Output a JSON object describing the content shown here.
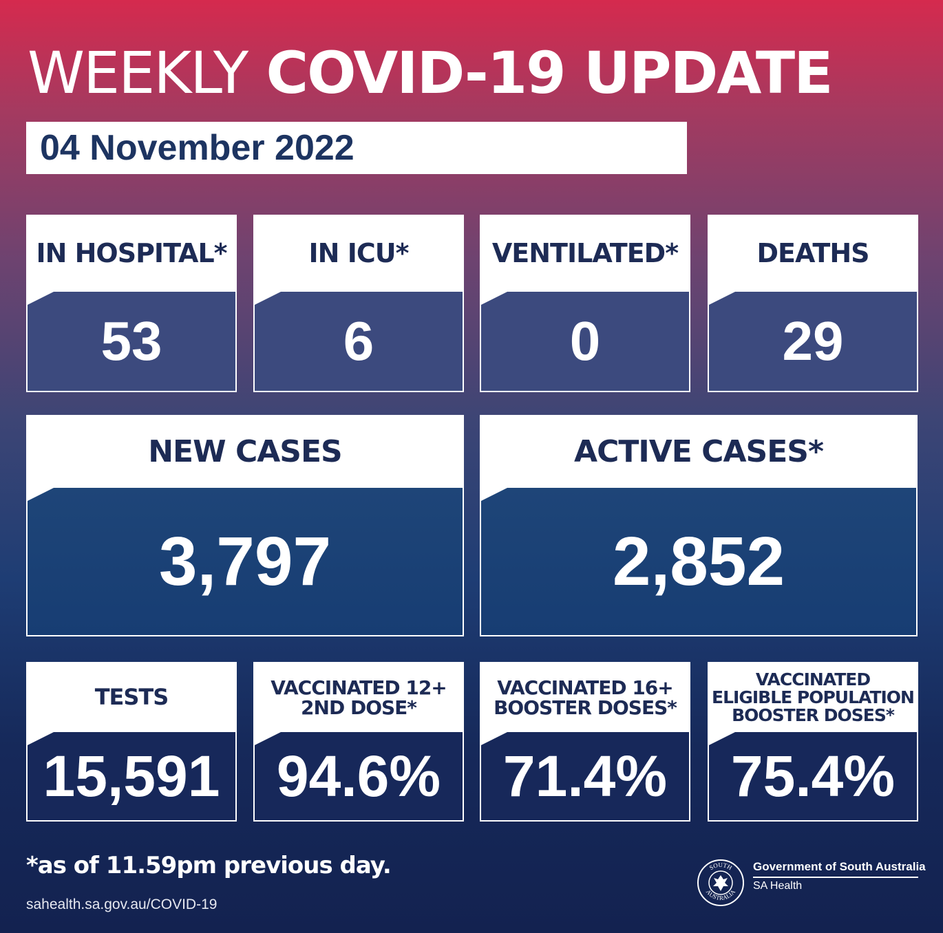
{
  "header": {
    "title_light": "WEEKLY",
    "title_bold": "COVID-19 UPDATE",
    "date": "04 November 2022"
  },
  "row1": [
    {
      "label": "IN HOSPITAL*",
      "value": "53"
    },
    {
      "label": "IN ICU*",
      "value": "6"
    },
    {
      "label": "VENTILATED*",
      "value": "0"
    },
    {
      "label": "DEATHS",
      "value": "29"
    }
  ],
  "row2": [
    {
      "label": "NEW CASES",
      "value": "3,797"
    },
    {
      "label": "ACTIVE CASES*",
      "value": "2,852"
    }
  ],
  "row3": [
    {
      "label": "TESTS",
      "value": "15,591"
    },
    {
      "label_lines": [
        "VACCINATED 12+",
        "2ND DOSE*"
      ],
      "value": "94.6%"
    },
    {
      "label_lines": [
        "VACCINATED 16+",
        "BOOSTER DOSES*"
      ],
      "value": "71.4%"
    },
    {
      "label_lines": [
        "VACCINATED",
        "ELIGIBLE POPULATION",
        "BOOSTER DOSES*"
      ],
      "value": "75.4%"
    }
  ],
  "footer": {
    "note": "*as of 11.59pm previous day.",
    "url": "sahealth.sa.gov.au/COVID-19",
    "gov_name": "Government of South Australia",
    "gov_sub": "SA Health",
    "crest_top": "SOUTH",
    "crest_bottom": "AUSTRALIA"
  },
  "colors": {
    "navy_text": "#1d2b55",
    "gradient_top": "#d52a4e",
    "gradient_bottom": "#132250"
  }
}
